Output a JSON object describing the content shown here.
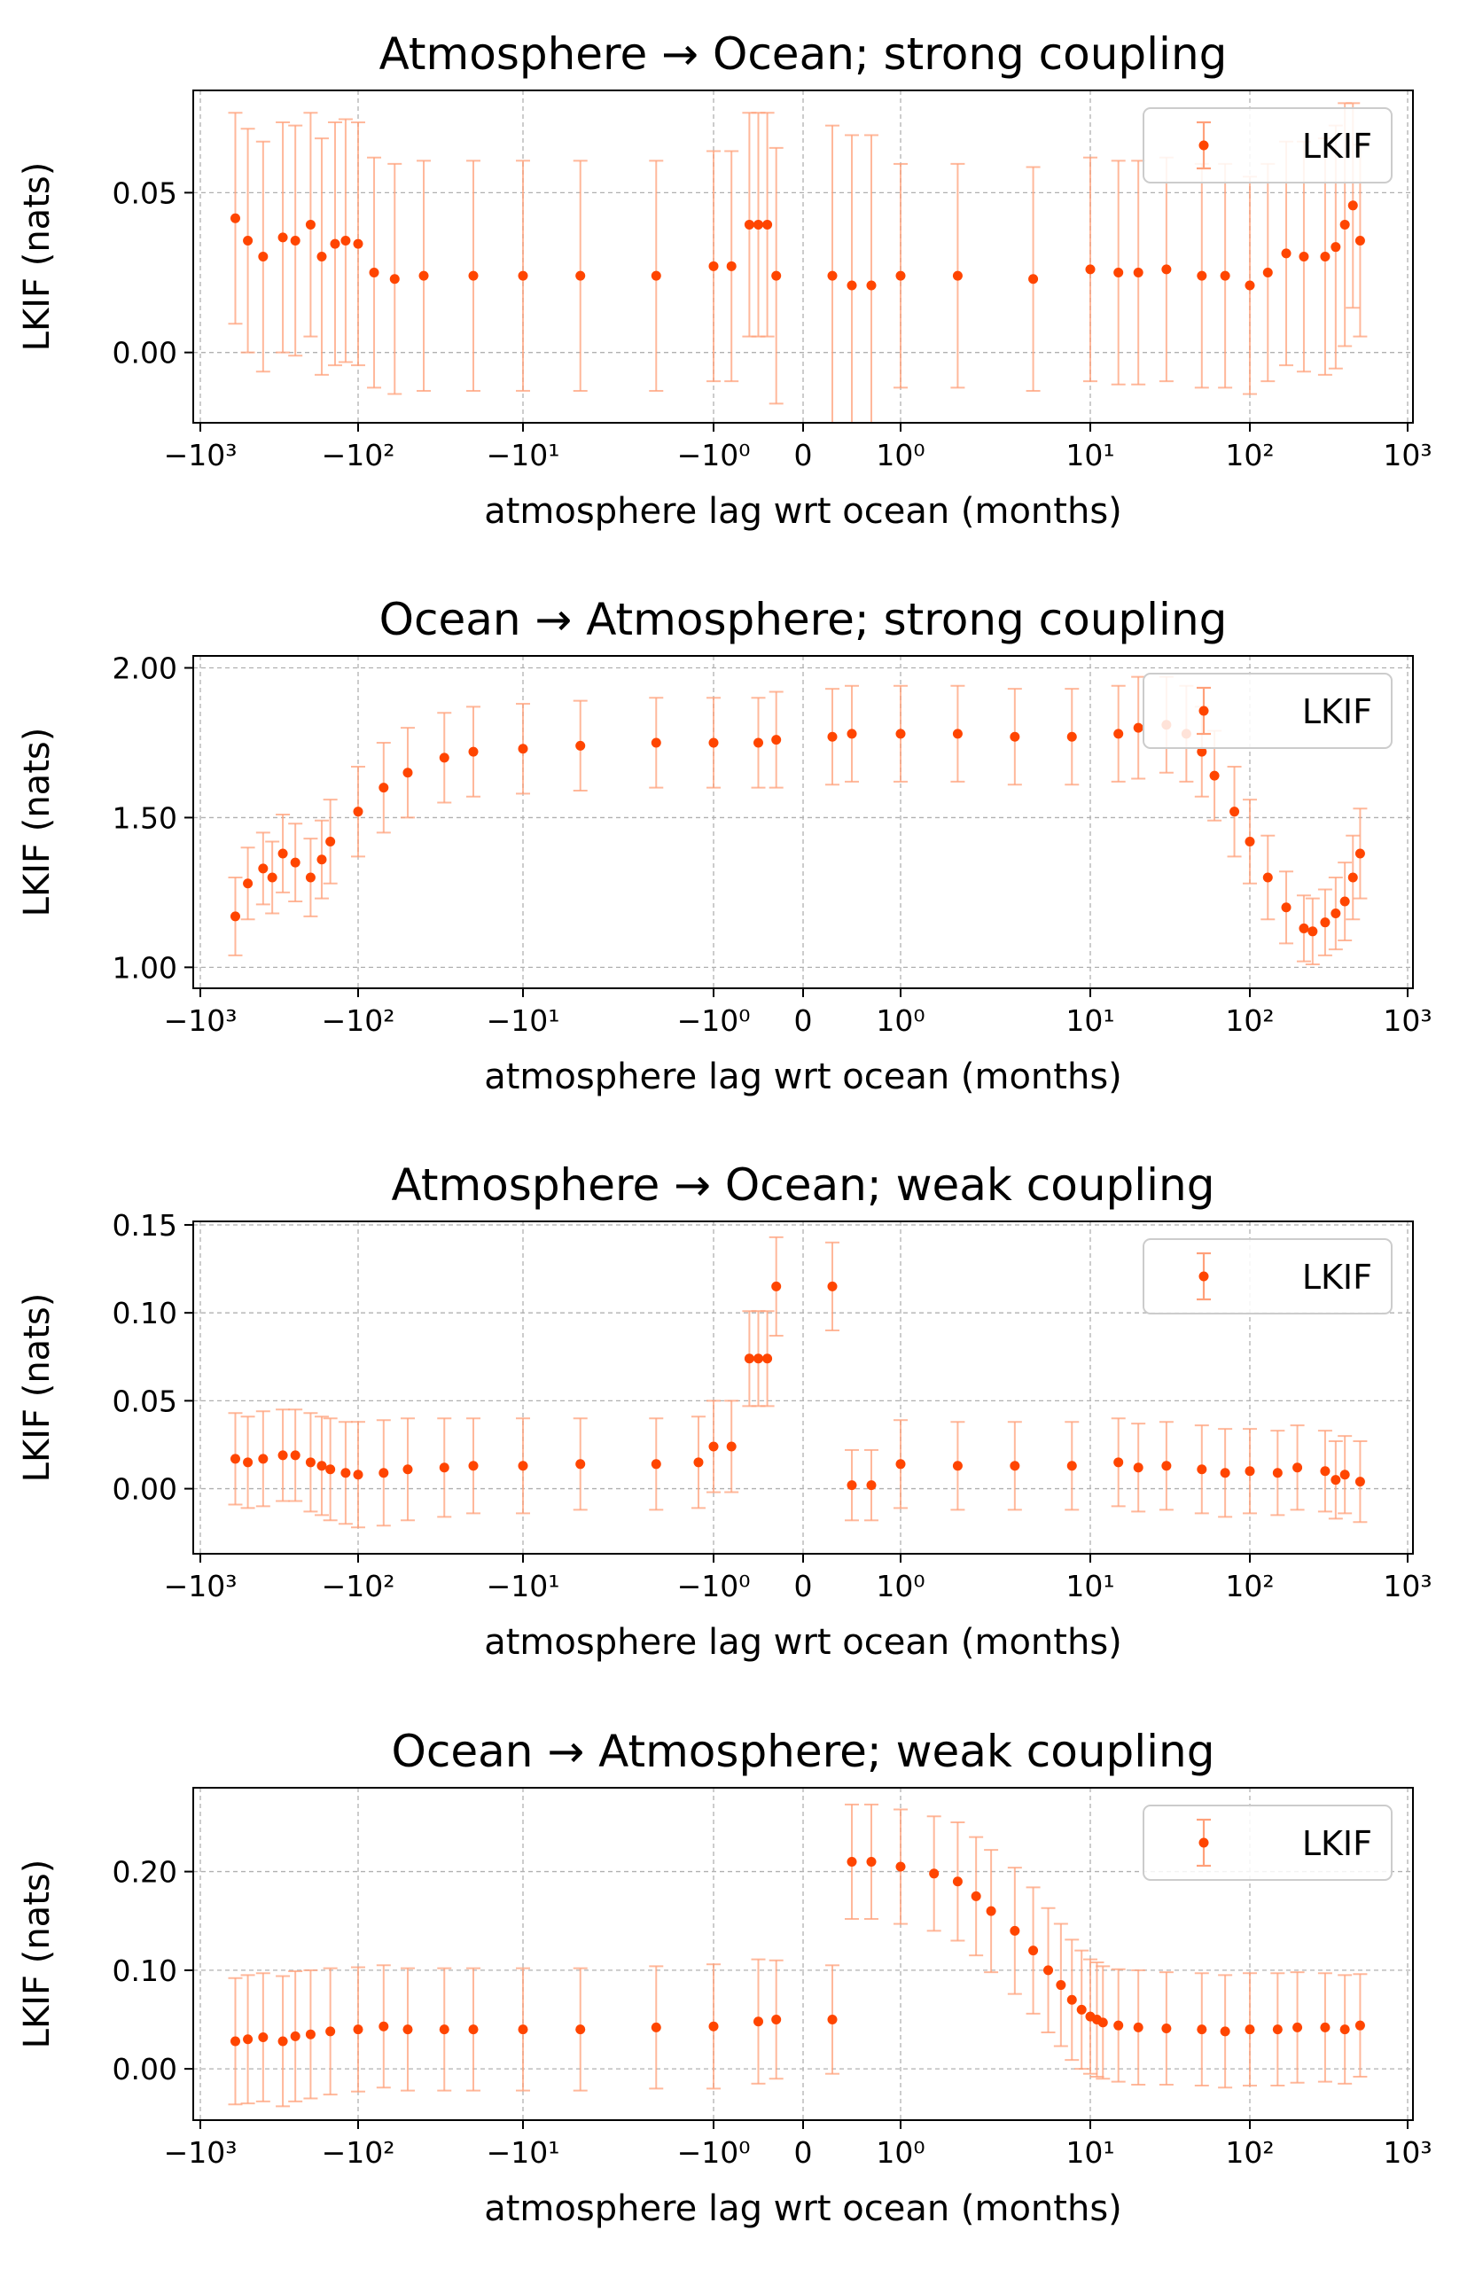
{
  "colors": {
    "marker": "#ff4500",
    "errorbar": "#ffa07a",
    "grid": "#b0b0b0",
    "axis": "#000000"
  },
  "chart_data": [
    {
      "type": "scatter",
      "title": "Atmosphere → Ocean; strong coupling",
      "xlabel": "atmosphere lag wrt ocean (months)",
      "ylabel": "LKIF (nats)",
      "xscale": "symlog",
      "xticks": [
        "−10³",
        "−10²",
        "−10¹",
        "−10⁰",
        "0",
        "10⁰",
        "10¹",
        "10²",
        "10³"
      ],
      "yticks": [
        "0.00",
        "0.05"
      ],
      "ylim": [
        -0.022,
        0.082
      ],
      "grid": true,
      "legend": {
        "label": "LKIF",
        "position": "top-right"
      },
      "series": [
        {
          "name": "LKIF",
          "x": [
            -600,
            -500,
            -400,
            -300,
            -250,
            -200,
            -170,
            -140,
            -120,
            -100,
            -80,
            -60,
            -40,
            -20,
            -10,
            -5,
            -2,
            -1,
            -0.8,
            -0.6,
            -0.5,
            -0.4,
            -0.3,
            0.3,
            0.5,
            0.7,
            1,
            2,
            5,
            10,
            15,
            20,
            30,
            50,
            70,
            100,
            130,
            170,
            220,
            300,
            350,
            400,
            450,
            500
          ],
          "y": [
            0.042,
            0.035,
            0.03,
            0.036,
            0.035,
            0.04,
            0.03,
            0.034,
            0.035,
            0.034,
            0.025,
            0.023,
            0.024,
            0.024,
            0.024,
            0.024,
            0.024,
            0.027,
            0.027,
            0.04,
            0.04,
            0.04,
            0.024,
            0.024,
            0.021,
            0.021,
            0.024,
            0.024,
            0.023,
            0.026,
            0.025,
            0.025,
            0.026,
            0.024,
            0.024,
            0.021,
            0.025,
            0.031,
            0.03,
            0.03,
            0.033,
            0.04,
            0.046,
            0.035
          ],
          "err": [
            0.033,
            0.035,
            0.036,
            0.036,
            0.036,
            0.035,
            0.037,
            0.038,
            0.038,
            0.038,
            0.036,
            0.036,
            0.036,
            0.036,
            0.036,
            0.036,
            0.036,
            0.036,
            0.036,
            0.035,
            0.035,
            0.035,
            0.04,
            0.047,
            0.047,
            0.047,
            0.035,
            0.035,
            0.035,
            0.035,
            0.035,
            0.035,
            0.035,
            0.035,
            0.035,
            0.034,
            0.034,
            0.035,
            0.036,
            0.037,
            0.038,
            0.038,
            0.032,
            0.03
          ]
        }
      ]
    },
    {
      "type": "scatter",
      "title": "Ocean → Atmosphere; strong coupling",
      "xlabel": "atmosphere lag wrt ocean (months)",
      "ylabel": "LKIF (nats)",
      "xscale": "symlog",
      "xticks": [
        "−10³",
        "−10²",
        "−10¹",
        "−10⁰",
        "0",
        "10⁰",
        "10¹",
        "10²",
        "10³"
      ],
      "yticks": [
        "1.00",
        "1.50",
        "2.00"
      ],
      "ylim": [
        0.93,
        2.04
      ],
      "grid": true,
      "legend": {
        "label": "LKIF",
        "position": "top-right"
      },
      "series": [
        {
          "name": "LKIF",
          "x": [
            -600,
            -500,
            -400,
            -350,
            -300,
            -250,
            -200,
            -170,
            -150,
            -100,
            -70,
            -50,
            -30,
            -20,
            -10,
            -5,
            -2,
            -1,
            -0.5,
            -0.3,
            0.3,
            0.5,
            1,
            2,
            4,
            8,
            15,
            20,
            30,
            40,
            50,
            60,
            80,
            100,
            130,
            170,
            220,
            250,
            300,
            350,
            400,
            450,
            500
          ],
          "y": [
            1.17,
            1.28,
            1.33,
            1.3,
            1.38,
            1.35,
            1.3,
            1.36,
            1.42,
            1.52,
            1.6,
            1.65,
            1.7,
            1.72,
            1.73,
            1.74,
            1.75,
            1.75,
            1.75,
            1.76,
            1.77,
            1.78,
            1.78,
            1.78,
            1.77,
            1.77,
            1.78,
            1.8,
            1.81,
            1.78,
            1.72,
            1.64,
            1.52,
            1.42,
            1.3,
            1.2,
            1.13,
            1.12,
            1.15,
            1.18,
            1.22,
            1.3,
            1.38
          ],
          "err": [
            0.13,
            0.12,
            0.12,
            0.12,
            0.13,
            0.13,
            0.13,
            0.13,
            0.14,
            0.15,
            0.15,
            0.15,
            0.15,
            0.15,
            0.15,
            0.15,
            0.15,
            0.15,
            0.15,
            0.16,
            0.16,
            0.16,
            0.16,
            0.16,
            0.16,
            0.16,
            0.16,
            0.17,
            0.16,
            0.16,
            0.15,
            0.15,
            0.15,
            0.14,
            0.14,
            0.12,
            0.11,
            0.11,
            0.11,
            0.12,
            0.13,
            0.14,
            0.15
          ]
        }
      ]
    },
    {
      "type": "scatter",
      "title": "Atmosphere → Ocean; weak coupling",
      "xlabel": "atmosphere lag wrt ocean (months)",
      "ylabel": "LKIF (nats)",
      "xscale": "symlog",
      "xticks": [
        "−10³",
        "−10²",
        "−10¹",
        "−10⁰",
        "0",
        "10⁰",
        "10¹",
        "10²",
        "10³"
      ],
      "yticks": [
        "0.00",
        "0.05",
        "0.10",
        "0.15"
      ],
      "ylim": [
        -0.037,
        0.152
      ],
      "grid": true,
      "legend": {
        "label": "LKIF",
        "position": "top-right"
      },
      "series": [
        {
          "name": "LKIF",
          "x": [
            -600,
            -500,
            -400,
            -300,
            -250,
            -200,
            -170,
            -150,
            -120,
            -100,
            -70,
            -50,
            -30,
            -20,
            -10,
            -5,
            -2,
            -1.2,
            -1,
            -0.8,
            -0.6,
            -0.5,
            -0.4,
            -0.3,
            0.3,
            0.5,
            0.7,
            1,
            2,
            4,
            8,
            15,
            20,
            30,
            50,
            70,
            100,
            150,
            200,
            300,
            350,
            400,
            500
          ],
          "y": [
            0.017,
            0.015,
            0.017,
            0.019,
            0.019,
            0.015,
            0.013,
            0.011,
            0.009,
            0.008,
            0.009,
            0.011,
            0.012,
            0.013,
            0.013,
            0.014,
            0.014,
            0.015,
            0.024,
            0.024,
            0.074,
            0.074,
            0.074,
            0.115,
            0.115,
            0.002,
            0.002,
            0.014,
            0.013,
            0.013,
            0.013,
            0.015,
            0.012,
            0.013,
            0.011,
            0.009,
            0.01,
            0.009,
            0.012,
            0.01,
            0.005,
            0.008,
            0.004
          ],
          "err": [
            0.026,
            0.026,
            0.027,
            0.026,
            0.026,
            0.028,
            0.028,
            0.029,
            0.029,
            0.03,
            0.03,
            0.029,
            0.028,
            0.027,
            0.027,
            0.026,
            0.026,
            0.026,
            0.026,
            0.026,
            0.027,
            0.027,
            0.027,
            0.028,
            0.025,
            0.02,
            0.02,
            0.025,
            0.025,
            0.025,
            0.025,
            0.025,
            0.025,
            0.025,
            0.025,
            0.025,
            0.024,
            0.024,
            0.024,
            0.023,
            0.022,
            0.022,
            0.023
          ]
        }
      ]
    },
    {
      "type": "scatter",
      "title": "Ocean → Atmosphere; weak coupling",
      "xlabel": "atmosphere lag wrt ocean (months)",
      "ylabel": "LKIF (nats)",
      "xscale": "symlog",
      "xticks": [
        "−10³",
        "−10²",
        "−10¹",
        "−10⁰",
        "0",
        "10⁰",
        "10¹",
        "10²",
        "10³"
      ],
      "yticks": [
        "0.00",
        "0.10",
        "0.20"
      ],
      "ylim": [
        -0.052,
        0.285
      ],
      "grid": true,
      "legend": {
        "label": "LKIF",
        "position": "top-right"
      },
      "series": [
        {
          "name": "LKIF",
          "x": [
            -600,
            -500,
            -400,
            -300,
            -250,
            -200,
            -150,
            -100,
            -70,
            -50,
            -30,
            -20,
            -10,
            -5,
            -2,
            -1,
            -0.5,
            -0.3,
            0.3,
            0.5,
            0.7,
            1,
            1.5,
            2,
            2.5,
            3,
            4,
            5,
            6,
            7,
            8,
            9,
            10,
            11,
            12,
            15,
            20,
            30,
            50,
            70,
            100,
            150,
            200,
            300,
            400,
            500
          ],
          "y": [
            0.028,
            0.03,
            0.032,
            0.028,
            0.033,
            0.035,
            0.038,
            0.04,
            0.043,
            0.04,
            0.04,
            0.04,
            0.04,
            0.04,
            0.042,
            0.043,
            0.048,
            0.05,
            0.05,
            0.21,
            0.21,
            0.205,
            0.198,
            0.19,
            0.175,
            0.16,
            0.14,
            0.12,
            0.1,
            0.085,
            0.07,
            0.06,
            0.053,
            0.05,
            0.047,
            0.044,
            0.042,
            0.041,
            0.04,
            0.038,
            0.04,
            0.04,
            0.042,
            0.042,
            0.04,
            0.044
          ],
          "err": [
            0.064,
            0.065,
            0.065,
            0.066,
            0.066,
            0.065,
            0.064,
            0.063,
            0.062,
            0.062,
            0.062,
            0.062,
            0.062,
            0.062,
            0.062,
            0.063,
            0.063,
            0.06,
            0.055,
            0.058,
            0.058,
            0.058,
            0.058,
            0.06,
            0.06,
            0.062,
            0.064,
            0.064,
            0.063,
            0.062,
            0.061,
            0.06,
            0.058,
            0.058,
            0.057,
            0.057,
            0.058,
            0.057,
            0.057,
            0.057,
            0.057,
            0.057,
            0.056,
            0.055,
            0.055,
            0.052
          ]
        }
      ]
    }
  ]
}
